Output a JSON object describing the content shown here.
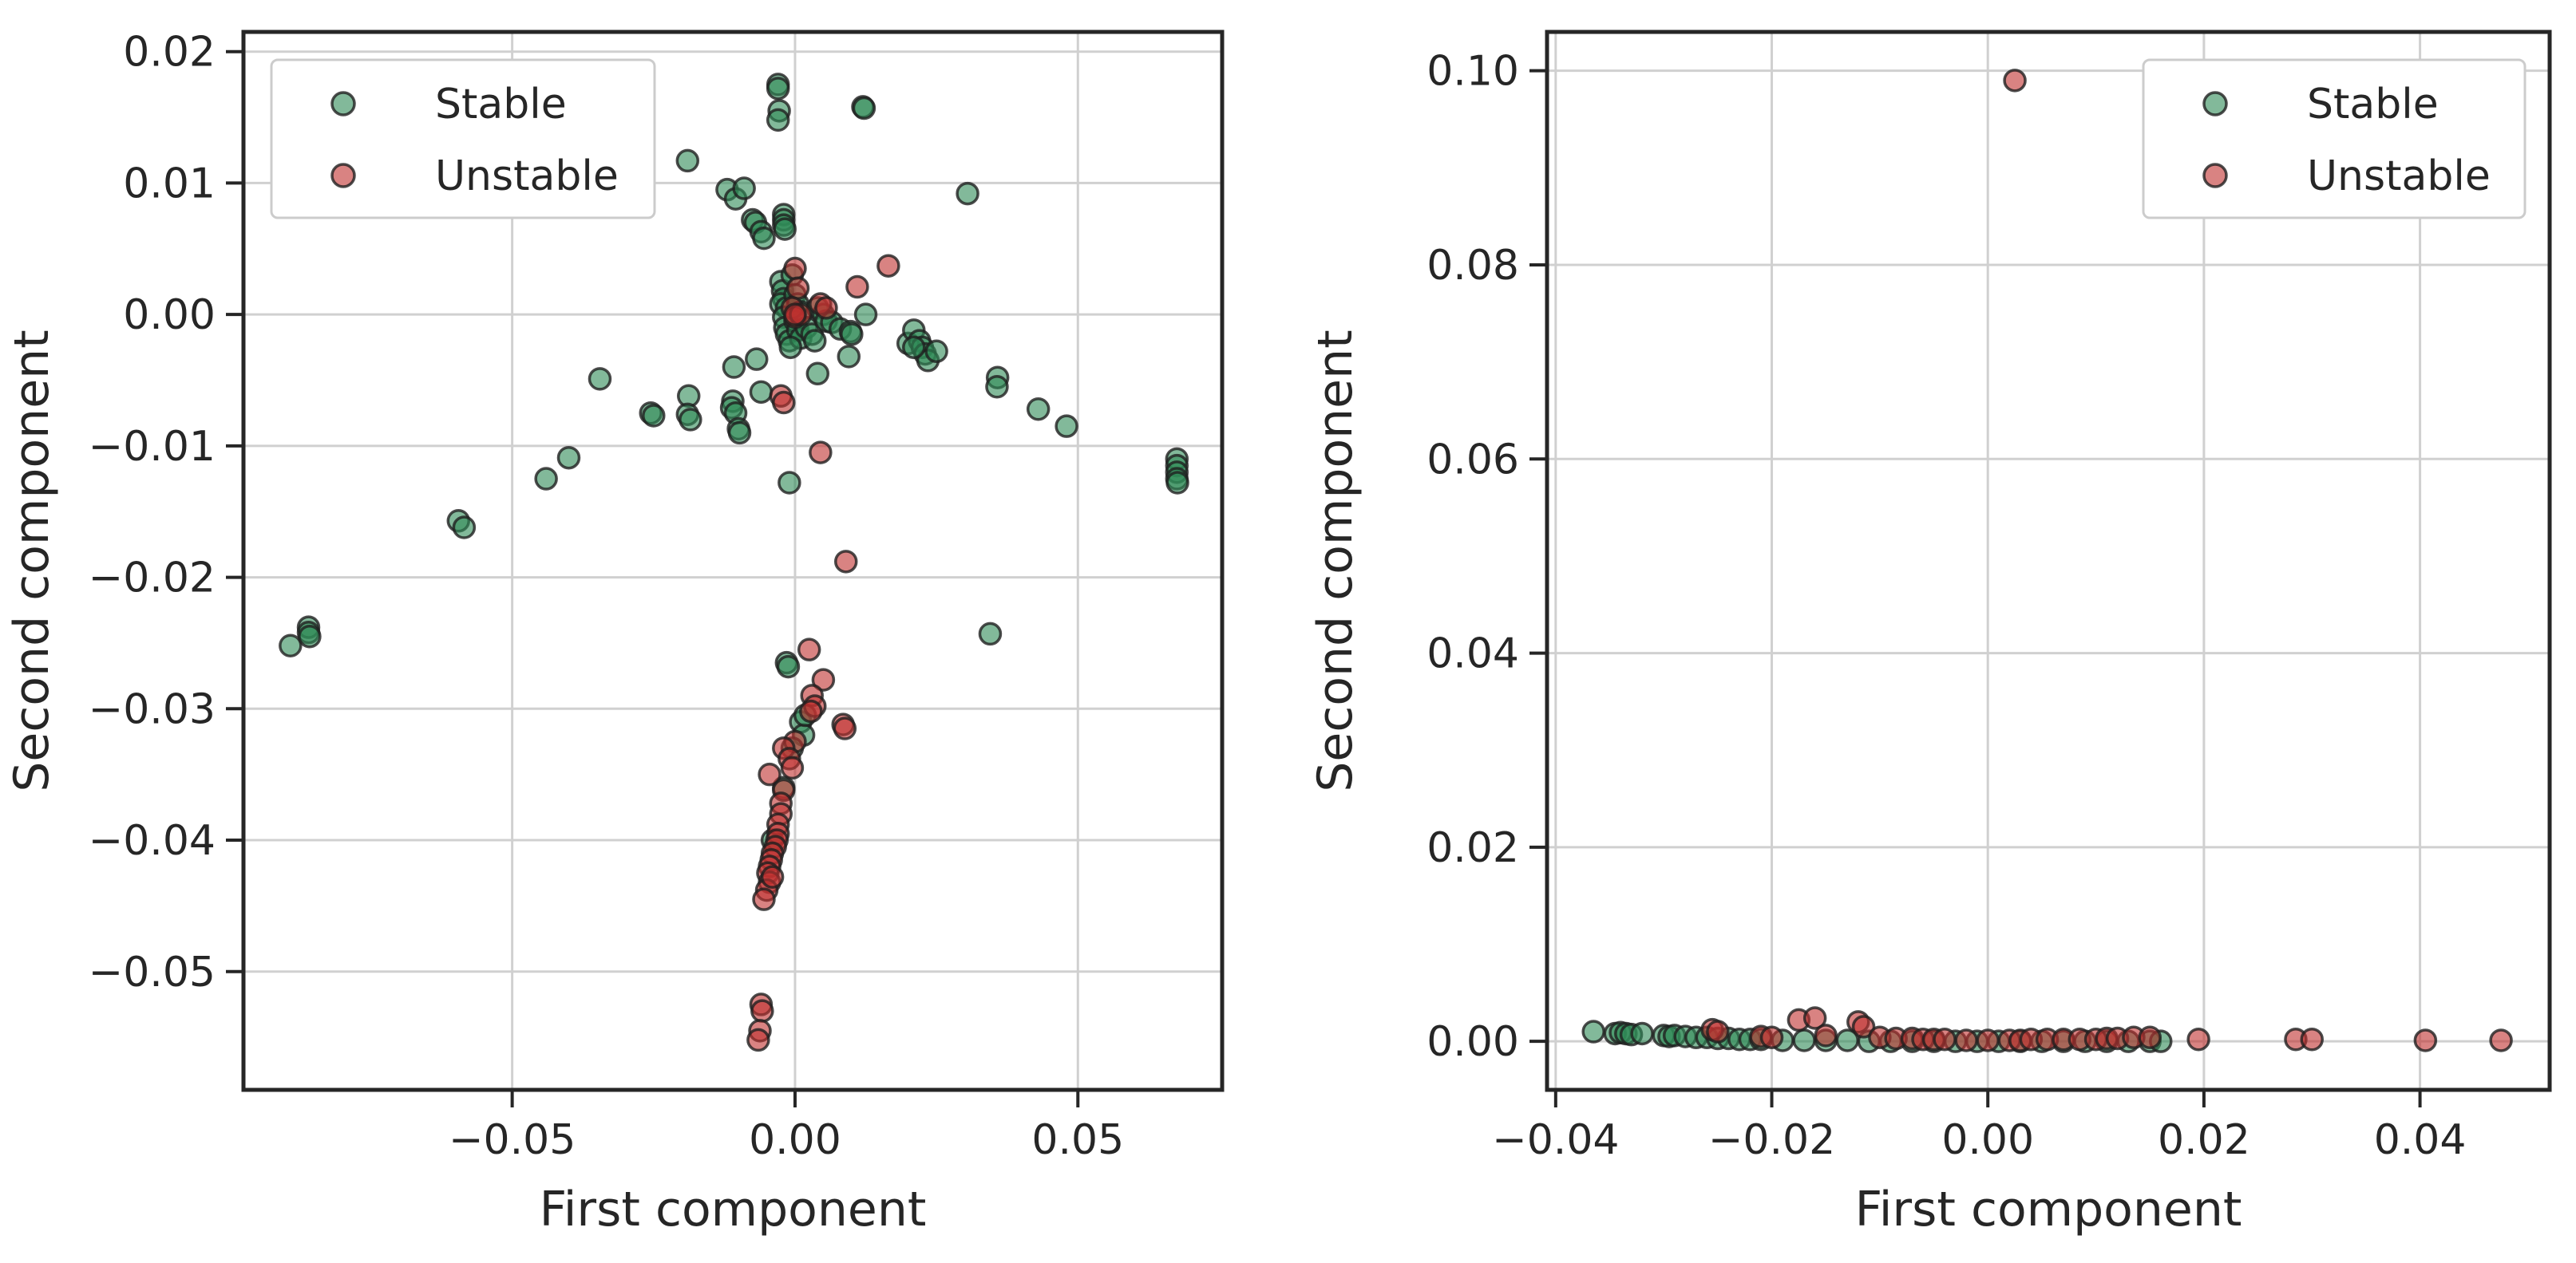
{
  "chart_data": [
    {
      "type": "scatter",
      "title": "",
      "xlabel": "First component",
      "ylabel": "Second component",
      "xlim": [
        -0.0975,
        0.0755
      ],
      "ylim": [
        -0.059,
        0.0215
      ],
      "grid": true,
      "legend": {
        "placement": "top-left",
        "entries": [
          "Stable",
          "Unstable"
        ]
      },
      "xticks": [
        -0.05,
        0.0,
        0.05
      ],
      "xtick_labels": [
        "−0.05",
        "0.00",
        "0.05"
      ],
      "yticks": [
        0.02,
        0.01,
        0.0,
        -0.01,
        -0.02,
        -0.03,
        -0.04,
        -0.05
      ],
      "ytick_labels": [
        "0.02",
        "0.01",
        "0.00",
        "−0.01",
        "−0.02",
        "−0.03",
        "−0.04",
        "−0.05"
      ],
      "series": [
        {
          "name": "Stable",
          "color": "#2e8b57",
          "points": [
            [
              -0.0892,
              -0.0252
            ],
            [
              -0.086,
              -0.0238
            ],
            [
              -0.086,
              -0.0242
            ],
            [
              -0.0858,
              -0.0245
            ],
            [
              -0.0595,
              -0.0157
            ],
            [
              -0.0585,
              -0.0162
            ],
            [
              -0.044,
              -0.0125
            ],
            [
              -0.04,
              -0.0109
            ],
            [
              -0.0345,
              -0.0049
            ],
            [
              -0.0255,
              -0.0075
            ],
            [
              -0.025,
              -0.0077
            ],
            [
              -0.019,
              0.0117
            ],
            [
              -0.0188,
              -0.0062
            ],
            [
              -0.019,
              -0.0076
            ],
            [
              -0.0185,
              -0.008
            ],
            [
              -0.012,
              0.0095
            ],
            [
              -0.0105,
              0.0088
            ],
            [
              -0.009,
              0.0096
            ],
            [
              -0.011,
              -0.0066
            ],
            [
              -0.0112,
              -0.0071
            ],
            [
              -0.0105,
              -0.0075
            ],
            [
              -0.01,
              -0.0087
            ],
            [
              -0.0098,
              -0.009
            ],
            [
              -0.0108,
              -0.004
            ],
            [
              -0.0075,
              0.0072
            ],
            [
              -0.007,
              0.007
            ],
            [
              -0.006,
              0.0063
            ],
            [
              -0.0055,
              0.0058
            ],
            [
              -0.0068,
              -0.0034
            ],
            [
              -0.006,
              -0.0059
            ],
            [
              -0.003,
              0.0175
            ],
            [
              -0.003,
              0.0172
            ],
            [
              -0.0028,
              0.0155
            ],
            [
              -0.003,
              0.0148
            ],
            [
              -0.002,
              0.0076
            ],
            [
              -0.002,
              0.0072
            ],
            [
              -0.002,
              0.0068
            ],
            [
              -0.0018,
              0.0065
            ],
            [
              -0.0025,
              0.0025
            ],
            [
              -0.0022,
              0.0018
            ],
            [
              -0.002,
              0.0012
            ],
            [
              -0.0025,
              0.0008
            ],
            [
              -0.0015,
              0.0005
            ],
            [
              -0.002,
              -0.0002
            ],
            [
              -0.0018,
              -0.001
            ],
            [
              -0.0015,
              -0.0015
            ],
            [
              -0.001,
              -0.002
            ],
            [
              -0.0005,
              0.003
            ],
            [
              0.0,
              0.0015
            ],
            [
              0.0005,
              0.0008
            ],
            [
              0.001,
              0.0002
            ],
            [
              0.0,
              -0.0005
            ],
            [
              0.0005,
              -0.0012
            ],
            [
              0.001,
              -0.0018
            ],
            [
              -0.0008,
              -0.0025
            ],
            [
              0.002,
              -0.001
            ],
            [
              0.003,
              -0.0015
            ],
            [
              0.0035,
              -0.002
            ],
            [
              0.004,
              0.0005
            ],
            [
              0.005,
              0.0
            ],
            [
              0.0055,
              -0.0005
            ],
            [
              0.0065,
              -0.0006
            ],
            [
              0.008,
              -0.0011
            ],
            [
              0.0098,
              -0.0013
            ],
            [
              0.01,
              -0.0015
            ],
            [
              0.0125,
              0.0
            ],
            [
              0.0095,
              -0.0032
            ],
            [
              0.004,
              -0.0045
            ],
            [
              0.012,
              0.0158
            ],
            [
              0.0122,
              0.0157
            ],
            [
              0.02,
              -0.0022
            ],
            [
              0.021,
              -0.0012
            ],
            [
              0.022,
              -0.002
            ],
            [
              0.0225,
              -0.0025
            ],
            [
              0.023,
              -0.003
            ],
            [
              0.0235,
              -0.0035
            ],
            [
              0.025,
              -0.0028
            ],
            [
              0.021,
              -0.0025
            ],
            [
              0.0305,
              0.0092
            ],
            [
              0.0345,
              -0.0243
            ],
            [
              0.0358,
              -0.0048
            ],
            [
              0.0357,
              -0.0055
            ],
            [
              0.043,
              -0.0072
            ],
            [
              0.048,
              -0.0085
            ],
            [
              0.0675,
              -0.011
            ],
            [
              0.0675,
              -0.0115
            ],
            [
              0.0675,
              -0.012
            ],
            [
              0.0675,
              -0.0125
            ],
            [
              0.0676,
              -0.0128
            ],
            [
              -0.001,
              -0.0128
            ],
            [
              -0.0015,
              -0.0265
            ],
            [
              -0.0012,
              -0.0268
            ],
            [
              0.001,
              -0.031
            ],
            [
              0.0015,
              -0.032
            ],
            [
              0.0018,
              -0.0305
            ],
            [
              -0.004,
              -0.04
            ],
            [
              -0.0005,
              -0.033
            ],
            [
              -0.002,
              -0.036
            ]
          ]
        },
        {
          "name": "Unstable",
          "color": "#c0302f",
          "points": [
            [
              0.0,
              0.0035
            ],
            [
              0.0005,
              0.002
            ],
            [
              -0.0005,
              0.0005
            ],
            [
              0.0,
              -0.0002
            ],
            [
              0.001,
              0.0
            ],
            [
              0.0045,
              0.0008
            ],
            [
              0.0055,
              0.0005
            ],
            [
              0.011,
              0.0021
            ],
            [
              0.0165,
              0.0037
            ],
            [
              -0.0025,
              -0.0062
            ],
            [
              -0.002,
              -0.0067
            ],
            [
              0.0045,
              -0.0105
            ],
            [
              0.009,
              -0.0188
            ],
            [
              0.0025,
              -0.0255
            ],
            [
              0.005,
              -0.0278
            ],
            [
              0.003,
              -0.029
            ],
            [
              0.0035,
              -0.0298
            ],
            [
              0.0028,
              -0.0302
            ],
            [
              0.0085,
              -0.0312
            ],
            [
              0.0088,
              -0.0315
            ],
            [
              0.0,
              -0.0325
            ],
            [
              -0.002,
              -0.033
            ],
            [
              -0.001,
              -0.0338
            ],
            [
              -0.0005,
              -0.0345
            ],
            [
              -0.0045,
              -0.035
            ],
            [
              -0.002,
              -0.0362
            ],
            [
              -0.0025,
              -0.0372
            ],
            [
              -0.0025,
              -0.038
            ],
            [
              -0.003,
              -0.0388
            ],
            [
              -0.003,
              -0.0395
            ],
            [
              -0.0032,
              -0.04
            ],
            [
              -0.0035,
              -0.0405
            ],
            [
              -0.004,
              -0.041
            ],
            [
              -0.0042,
              -0.0415
            ],
            [
              -0.0045,
              -0.042
            ],
            [
              -0.0048,
              -0.0425
            ],
            [
              -0.0045,
              -0.0432
            ],
            [
              -0.005,
              -0.0438
            ],
            [
              -0.0055,
              -0.0445
            ],
            [
              -0.004,
              -0.0428
            ],
            [
              -0.006,
              -0.0525
            ],
            [
              -0.0058,
              -0.053
            ],
            [
              -0.0062,
              -0.0545
            ],
            [
              -0.0065,
              -0.0552
            ],
            [
              0.0,
              0.0
            ]
          ]
        }
      ]
    },
    {
      "type": "scatter",
      "title": "",
      "xlabel": "First component",
      "ylabel": "Second component",
      "xlim": [
        -0.0408,
        0.052
      ],
      "ylim": [
        -0.005,
        0.104
      ],
      "grid": true,
      "legend": {
        "placement": "top-right",
        "entries": [
          "Stable",
          "Unstable"
        ]
      },
      "xticks": [
        -0.04,
        -0.02,
        0.0,
        0.02,
        0.04
      ],
      "xtick_labels": [
        "−0.04",
        "−0.02",
        "0.00",
        "0.02",
        "0.04"
      ],
      "yticks": [
        0.1,
        0.08,
        0.06,
        0.04,
        0.02,
        0.0
      ],
      "ytick_labels": [
        "0.10",
        "0.08",
        "0.06",
        "0.04",
        "0.02",
        "0.00"
      ],
      "series": [
        {
          "name": "Stable",
          "color": "#2e8b57",
          "points": [
            [
              -0.0365,
              0.001
            ],
            [
              -0.0345,
              0.0008
            ],
            [
              -0.034,
              0.0009
            ],
            [
              -0.0335,
              0.0008
            ],
            [
              -0.033,
              0.0007
            ],
            [
              -0.032,
              0.0008
            ],
            [
              -0.03,
              0.0006
            ],
            [
              -0.0295,
              0.0005
            ],
            [
              -0.029,
              0.0006
            ],
            [
              -0.028,
              0.0005
            ],
            [
              -0.027,
              0.0004
            ],
            [
              -0.026,
              0.0004
            ],
            [
              -0.025,
              0.0003
            ],
            [
              -0.024,
              0.0003
            ],
            [
              -0.023,
              0.0002
            ],
            [
              -0.022,
              0.0002
            ],
            [
              -0.021,
              0.0002
            ],
            [
              -0.019,
              0.0001
            ],
            [
              -0.017,
              0.0001
            ],
            [
              -0.015,
              0.0001
            ],
            [
              -0.013,
              0.0001
            ],
            [
              -0.011,
              0.0
            ],
            [
              -0.009,
              0.0
            ],
            [
              -0.007,
              0.0
            ],
            [
              -0.005,
              0.0
            ],
            [
              -0.003,
              0.0
            ],
            [
              -0.001,
              0.0
            ],
            [
              0.001,
              0.0
            ],
            [
              0.003,
              0.0
            ],
            [
              0.005,
              0.0
            ],
            [
              0.007,
              0.0
            ],
            [
              0.009,
              0.0
            ],
            [
              0.011,
              0.0
            ],
            [
              0.013,
              0.0
            ],
            [
              0.015,
              0.0
            ],
            [
              0.016,
              0.0
            ]
          ]
        },
        {
          "name": "Unstable",
          "color": "#c0302f",
          "points": [
            [
              0.0025,
              0.099
            ],
            [
              -0.0255,
              0.0012
            ],
            [
              -0.025,
              0.001
            ],
            [
              -0.021,
              0.0005
            ],
            [
              -0.02,
              0.0004
            ],
            [
              -0.0175,
              0.0022
            ],
            [
              -0.016,
              0.0024
            ],
            [
              -0.015,
              0.0006
            ],
            [
              -0.012,
              0.002
            ],
            [
              -0.0115,
              0.0015
            ],
            [
              -0.01,
              0.0004
            ],
            [
              -0.0085,
              0.0003
            ],
            [
              -0.007,
              0.0003
            ],
            [
              -0.006,
              0.0002
            ],
            [
              -0.005,
              0.0002
            ],
            [
              -0.004,
              0.0002
            ],
            [
              -0.002,
              0.0001
            ],
            [
              0.0,
              0.0001
            ],
            [
              0.002,
              0.0001
            ],
            [
              0.003,
              0.0001
            ],
            [
              0.004,
              0.0002
            ],
            [
              0.0055,
              0.0002
            ],
            [
              0.007,
              0.0002
            ],
            [
              0.0085,
              0.0002
            ],
            [
              0.01,
              0.0002
            ],
            [
              0.011,
              0.0003
            ],
            [
              0.012,
              0.0003
            ],
            [
              0.0135,
              0.0004
            ],
            [
              0.015,
              0.0004
            ],
            [
              0.0195,
              0.0002
            ],
            [
              0.0285,
              0.0002
            ],
            [
              0.03,
              0.0002
            ],
            [
              0.0405,
              0.0001
            ],
            [
              0.0475,
              0.0001
            ]
          ]
        }
      ]
    }
  ]
}
